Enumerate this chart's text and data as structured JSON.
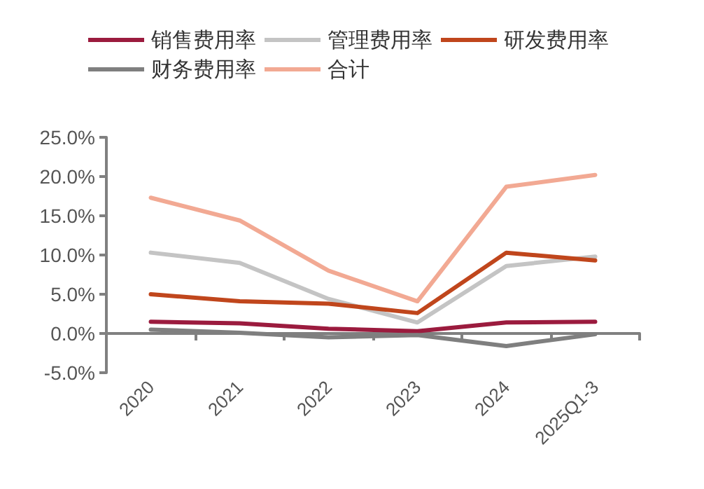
{
  "chart_data": {
    "type": "line",
    "categories": [
      "2020",
      "2021",
      "2022",
      "2023",
      "2024",
      "2025Q1-3"
    ],
    "series": [
      {
        "name": "销售费用率",
        "color": "#9b1b3e",
        "values": [
          1.5,
          1.3,
          0.6,
          0.3,
          1.4,
          1.5
        ]
      },
      {
        "name": "管理费用率",
        "color": "#c4c4c4",
        "values": [
          10.3,
          9.0,
          4.4,
          1.4,
          8.6,
          9.8
        ]
      },
      {
        "name": "研发费用率",
        "color": "#c0461c",
        "values": [
          5.0,
          4.1,
          3.8,
          2.6,
          10.3,
          9.3
        ]
      },
      {
        "name": "财务费用率",
        "color": "#7f7f7f",
        "values": [
          0.5,
          0.1,
          -0.5,
          -0.2,
          -1.6,
          -0.1
        ]
      },
      {
        "name": "合计",
        "color": "#f2a993",
        "values": [
          17.3,
          14.4,
          8.0,
          4.1,
          18.7,
          20.2
        ]
      }
    ],
    "ylim": [
      -5,
      25
    ],
    "yticks": [
      {
        "value": -5,
        "label": "-5.0%"
      },
      {
        "value": 0,
        "label": "0.0%"
      },
      {
        "value": 5,
        "label": "5.0%"
      },
      {
        "value": 10,
        "label": "10.0%"
      },
      {
        "value": 15,
        "label": "15.0%"
      },
      {
        "value": 20,
        "label": "20.0%"
      },
      {
        "value": 25,
        "label": "25.0%"
      }
    ],
    "grid": false,
    "legend": "top",
    "marker": "none",
    "line_style": "solid"
  }
}
